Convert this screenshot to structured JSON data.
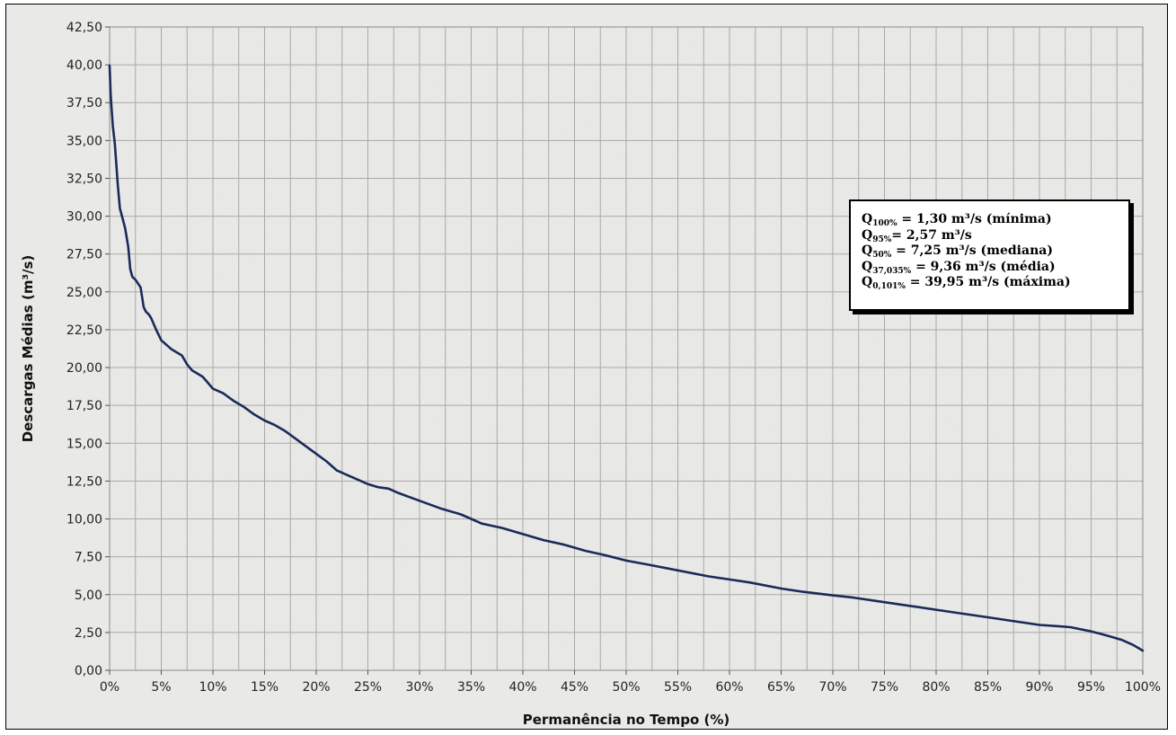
{
  "chart_data": {
    "type": "line",
    "title": "",
    "xlabel": "Permanência no Tempo (%)",
    "ylabel": "Descargas Médias (m³/s)",
    "xlim": [
      0,
      100
    ],
    "ylim": [
      0,
      42.5
    ],
    "x_ticks": [
      0,
      5,
      10,
      15,
      20,
      25,
      30,
      35,
      40,
      45,
      50,
      55,
      60,
      65,
      70,
      75,
      80,
      85,
      90,
      95,
      100
    ],
    "x_tick_labels": [
      "0%",
      "5%",
      "10%",
      "15%",
      "20%",
      "25%",
      "30%",
      "35%",
      "40%",
      "45%",
      "50%",
      "55%",
      "60%",
      "65%",
      "70%",
      "75%",
      "80%",
      "85%",
      "90%",
      "95%",
      "100%"
    ],
    "y_ticks": [
      0,
      2.5,
      5,
      7.5,
      10,
      12.5,
      15,
      17.5,
      20,
      22.5,
      25,
      27.5,
      30,
      32.5,
      35,
      37.5,
      40,
      42.5
    ],
    "y_tick_labels": [
      "0,00",
      "2,50",
      "5,00",
      "7,50",
      "10,00",
      "12,50",
      "15,00",
      "17,50",
      "20,00",
      "22,50",
      "25,00",
      "27,50",
      "30,00",
      "32,50",
      "35,00",
      "37,50",
      "40,00",
      "42,50"
    ],
    "grid": true,
    "line_color": "#1a2b5a",
    "series": [
      {
        "x": [
          0,
          0.1,
          0.3,
          0.5,
          0.8,
          1.0,
          1.2,
          1.5,
          1.8,
          2.0,
          2.2,
          2.5,
          3.0,
          3.3,
          3.5,
          3.8,
          4.0,
          4.5,
          5.0,
          5.5,
          6.0,
          7.0,
          7.5,
          8.0,
          8.5,
          9.0,
          9.5,
          10.0,
          11.0,
          12.0,
          13.0,
          14.0,
          15.0,
          16.0,
          17.0,
          18.0,
          19.0,
          20.0,
          21.0,
          22.0,
          23.0,
          24.0,
          25.0,
          26.0,
          27.0,
          28.0,
          30.0,
          32.0,
          34.0,
          35.0,
          36.0,
          38.0,
          40.0,
          42.0,
          44.0,
          45.0,
          46.0,
          48.0,
          50.0,
          52.0,
          55.0,
          58.0,
          60.0,
          62.0,
          65.0,
          67.0,
          70.0,
          72.0,
          75.0,
          78.0,
          80.0,
          82.0,
          85.0,
          88.0,
          90.0,
          92.0,
          93.0,
          95.0,
          96.0,
          97.0,
          98.0,
          99.0,
          99.5,
          100.0
        ],
        "y": [
          39.95,
          38.0,
          36.0,
          34.8,
          32.0,
          30.5,
          30.0,
          29.2,
          28.0,
          26.5,
          26.0,
          25.8,
          25.3,
          24.0,
          23.7,
          23.5,
          23.3,
          22.5,
          21.8,
          21.5,
          21.2,
          20.8,
          20.2,
          19.8,
          19.6,
          19.4,
          19.0,
          18.6,
          18.3,
          17.8,
          17.4,
          16.9,
          16.5,
          16.2,
          15.8,
          15.3,
          14.8,
          14.3,
          13.8,
          13.2,
          12.9,
          12.6,
          12.3,
          12.1,
          12.0,
          11.7,
          11.2,
          10.7,
          10.3,
          10.0,
          9.7,
          9.4,
          9.0,
          8.6,
          8.3,
          8.1,
          7.9,
          7.6,
          7.25,
          7.0,
          6.6,
          6.2,
          6.0,
          5.8,
          5.4,
          5.2,
          4.95,
          4.8,
          4.5,
          4.2,
          4.0,
          3.8,
          3.5,
          3.2,
          3.0,
          2.9,
          2.85,
          2.57,
          2.4,
          2.2,
          2.0,
          1.7,
          1.5,
          1.3
        ]
      }
    ],
    "annotation": {
      "lines": [
        {
          "q": "Q",
          "sub": "100%",
          "text": " = 1,30 m³/s (mínima)"
        },
        {
          "q": "Q",
          "sub": "95%",
          "text": "= 2,57 m³/s"
        },
        {
          "q": "Q",
          "sub": "50%",
          "text": " = 7,25 m³/s (mediana)"
        },
        {
          "q": "Q",
          "sub": "37,035%",
          "text": " = 9,36 m³/s (média)"
        },
        {
          "q": "Q",
          "sub": "0,101%",
          "text": " = 39,95 m³/s (máxima)"
        }
      ]
    }
  }
}
